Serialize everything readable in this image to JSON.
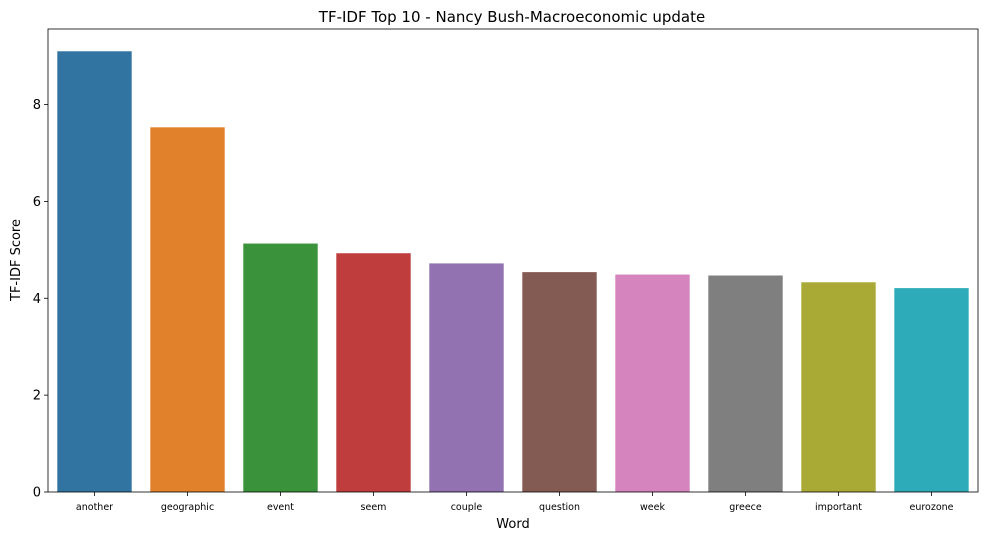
{
  "chart_data": {
    "type": "bar",
    "title": "TF-IDF Top 10 - Nancy Bush-Macroeconomic update",
    "xlabel": "Word",
    "ylabel": "TF-IDF Score",
    "categories": [
      "another",
      "geographic",
      "event",
      "seem",
      "couple",
      "question",
      "week",
      "greece",
      "important",
      "eurozone"
    ],
    "values": [
      9.1,
      7.53,
      5.13,
      4.93,
      4.72,
      4.54,
      4.49,
      4.47,
      4.33,
      4.21
    ],
    "colors": [
      "#3274a1",
      "#e1812c",
      "#3a923a",
      "#c03d3e",
      "#9372b2",
      "#845b53",
      "#d684bd",
      "#7f7f7f",
      "#a9aa35",
      "#2eabb8"
    ],
    "ylim": [
      0,
      9.56
    ],
    "yticks": [
      0,
      2,
      4,
      6,
      8
    ],
    "grid": false,
    "legend": "none"
  }
}
